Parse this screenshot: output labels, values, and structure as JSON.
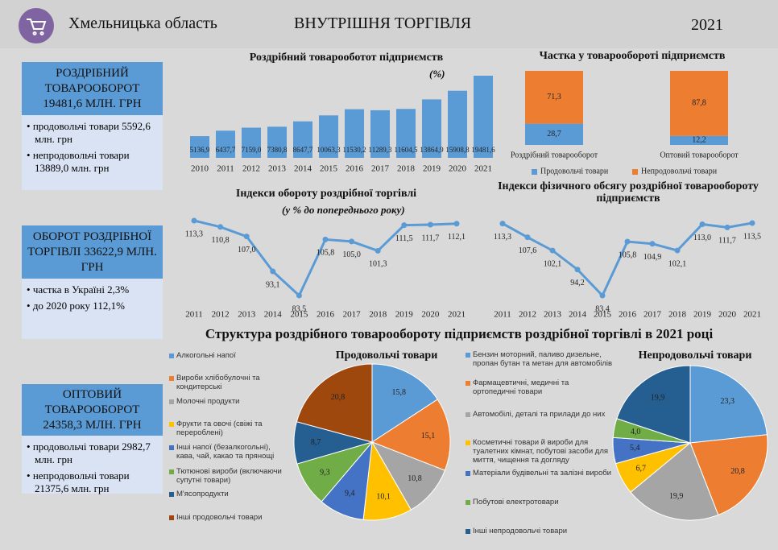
{
  "header": {
    "region": "Хмельницька область",
    "title": "ВНУТРІШНЯ ТОРГІВЛЯ",
    "year": "2021"
  },
  "panels": [
    {
      "title": "РОЗДРІБНИЙ ТОВАРООБОРОТ 19481,6 МЛН. ГРН",
      "items": [
        "продовольчі товари 5592,6 млн. грн",
        "непродовольчі товари 13889,0 млн. грн"
      ]
    },
    {
      "title": "ОБОРОТ РОЗДРІБНОЇ ТОРГІВЛІ 33622,9 МЛН. ГРН",
      "items": [
        "частка в Україні 2,3%",
        "до 2020 року 112,1%"
      ]
    },
    {
      "title": "ОПТОВИЙ ТОВАРООБОРОТ 24358,3 МЛН. ГРН",
      "items": [
        "продовольчі товари 2982,7 млн. грн",
        "непродовольчі товари 21375,6 млн. грн"
      ]
    }
  ],
  "section_title": "Структура роздрібного товарообороту підприємств роздрібної торгівлі в 2021 році",
  "chart_data": [
    {
      "type": "bar",
      "title": "Роздрібний товарооботот підприємств",
      "subtitle": "(%)",
      "color": "#5b9bd5",
      "categories": [
        "2010",
        "2011",
        "2012",
        "2013",
        "2014",
        "2015",
        "2016",
        "2017",
        "2018",
        "2019",
        "2020",
        "2021"
      ],
      "values": [
        5136.9,
        6437.7,
        7159.0,
        7380.8,
        8647.7,
        10063.3,
        11530.2,
        11289.3,
        11604.5,
        13864.9,
        15908.8,
        19481.6
      ],
      "value_labels": [
        "5136,9",
        "6437,7",
        "7159,0",
        "7380,8",
        "8647,7",
        "10063,3",
        "11530,2",
        "11289,3",
        "11604,5",
        "13864,9",
        "15908,8",
        "19481,6"
      ]
    },
    {
      "type": "stacked_bar",
      "title": "Частка у товарообороті підприємств",
      "categories": [
        "Роздрібний товарооборот",
        "Оптовий товарооборот"
      ],
      "series": [
        {
          "name": "Продовольчі товари",
          "color": "#5b9bd5",
          "values": [
            28.7,
            12.2
          ],
          "value_labels": [
            "28,7",
            "12,2"
          ]
        },
        {
          "name": "Непродовольчі товари",
          "color": "#ed7d31",
          "values": [
            71.3,
            87.8
          ],
          "value_labels": [
            "71,3",
            "87,8"
          ]
        }
      ]
    },
    {
      "type": "line",
      "title": "Індекси обороту роздрібної торгівлі",
      "subtitle": "(у % до попереднього року)",
      "color": "#5b9bd5",
      "categories": [
        "2011",
        "2012",
        "2013",
        "2014",
        "2015",
        "2016",
        "2017",
        "2018",
        "2019",
        "2020",
        "2021"
      ],
      "values": [
        113.3,
        110.8,
        107.0,
        93.1,
        83.5,
        105.8,
        105.0,
        101.3,
        111.5,
        111.7,
        112.1
      ],
      "value_labels": [
        "113,3",
        "110,8",
        "107,0",
        "93,1",
        "83,5",
        "105,8",
        "105,0",
        "101,3",
        "111,5",
        "111,7",
        "112,1"
      ]
    },
    {
      "type": "line",
      "title": "Індекси фізичного обсягу роздрібної товарообороту підприємств",
      "color": "#5b9bd5",
      "categories": [
        "2011",
        "2012",
        "2013",
        "2014",
        "2015",
        "2016",
        "2017",
        "2018",
        "2019",
        "2020",
        "2021"
      ],
      "values": [
        113.3,
        107.6,
        102.1,
        94.2,
        83.4,
        105.8,
        104.9,
        102.1,
        113.0,
        111.7,
        113.5
      ],
      "value_labels": [
        "113,3",
        "107,6",
        "102,1",
        "94,2",
        "83,4",
        "105,8",
        "104,9",
        "102,1",
        "113,0",
        "111,7",
        "113,5"
      ]
    },
    {
      "type": "pie",
      "title": "Продовольчі товари",
      "categories": [
        "Алкогольні напої",
        "Вироби хлібобулочні та кондитерські",
        "Молочні продукти",
        "Фрукти та овочі (свіжі та перероблені)",
        "Інші напої (безалкогольні), кава, чай, какао та прянощі",
        "Тютюнові вироби (включаючи супутні товари)",
        "М'ясопродукти",
        "Інші продовольчі товари"
      ],
      "values": [
        15.8,
        15.1,
        10.8,
        10.1,
        9.4,
        9.3,
        8.7,
        20.8
      ],
      "value_labels": [
        "15,8",
        "15,1",
        "10,8",
        "10,1",
        "9,4",
        "9,3",
        "8,7",
        "20,8"
      ],
      "colors": [
        "#5b9bd5",
        "#ed7d31",
        "#a5a5a5",
        "#ffc000",
        "#4472c4",
        "#70ad47",
        "#255e91",
        "#9e480e"
      ]
    },
    {
      "type": "pie",
      "title": "Непродовольчі товари",
      "categories": [
        "Бензин моторний, паливо дизельне, пропан бутан та метан для автомобілів",
        "Фармацевтичні, медичні та ортопедичні товари",
        "Автомобілі, деталі та прилади до них",
        "Косметичні товари й вироби для туалетних кімнат, побутові засоби для миття, чищення та догляду",
        "Матеріали будівельні та залізні вироби",
        "Побутові електротовари",
        "Інші непродовольчі товари"
      ],
      "values": [
        23.3,
        20.8,
        19.9,
        6.7,
        5.4,
        4.0,
        19.9
      ],
      "value_labels": [
        "23,3",
        "20,8",
        "19,9",
        "6,7",
        "5,4",
        "4,0",
        "19,9"
      ],
      "colors": [
        "#5b9bd5",
        "#ed7d31",
        "#a5a5a5",
        "#ffc000",
        "#4472c4",
        "#70ad47",
        "#255e91"
      ]
    }
  ]
}
